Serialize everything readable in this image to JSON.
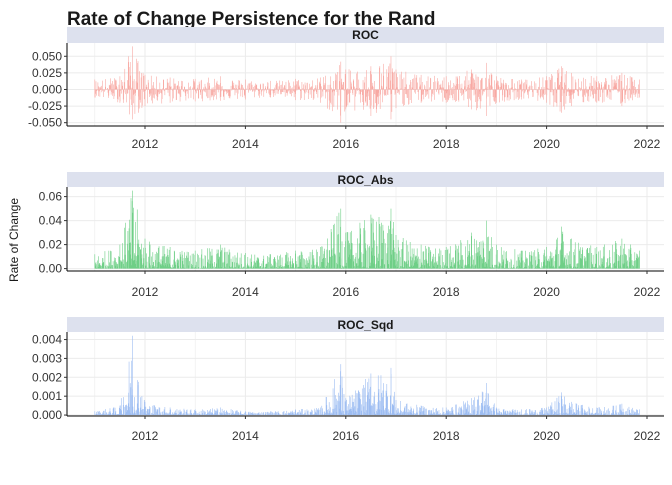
{
  "chart_data": {
    "type": "line",
    "title": "Rate of Change Persistence for the Rand",
    "ylabel": "Rate of Change",
    "xlabel": "",
    "x_range": [
      2011.0,
      2021.85
    ],
    "x_ticks": [
      "2012",
      "2014",
      "2016",
      "2018",
      "2020",
      "2022"
    ],
    "grid": true,
    "legend": "none",
    "panels": [
      {
        "strip": "ROC",
        "color": "#F8A9A3",
        "baseline": 0.0,
        "ylim": [
          -0.055,
          0.07
        ],
        "y_ticks": [
          "0.050",
          "0.025",
          "0.000",
          "-0.025",
          "-0.050"
        ],
        "series": {
          "x": [
            2011.0,
            2011.5,
            2011.75,
            2012.0,
            2012.5,
            2013.0,
            2013.5,
            2014.0,
            2014.5,
            2015.0,
            2015.5,
            2015.9,
            2016.0,
            2016.5,
            2016.9,
            2017.0,
            2017.5,
            2018.0,
            2018.5,
            2018.8,
            2019.0,
            2019.5,
            2020.0,
            2020.3,
            2020.5,
            2021.0,
            2021.5,
            2021.85
          ],
          "hi": [
            0.015,
            0.02,
            0.065,
            0.022,
            0.018,
            0.016,
            0.02,
            0.015,
            0.013,
            0.016,
            0.018,
            0.042,
            0.03,
            0.035,
            0.05,
            0.03,
            0.022,
            0.02,
            0.03,
            0.04,
            0.02,
            0.015,
            0.02,
            0.035,
            0.025,
            0.02,
            0.025,
            0.015
          ],
          "lo": [
            -0.012,
            -0.02,
            -0.045,
            -0.025,
            -0.02,
            -0.018,
            -0.017,
            -0.015,
            -0.012,
            -0.016,
            -0.02,
            -0.05,
            -0.03,
            -0.04,
            -0.045,
            -0.028,
            -0.02,
            -0.02,
            -0.03,
            -0.04,
            -0.02,
            -0.015,
            -0.02,
            -0.035,
            -0.025,
            -0.02,
            -0.025,
            -0.012
          ]
        }
      },
      {
        "strip": "ROC_Abs",
        "color": "#6FCF87",
        "baseline": 0.0,
        "ylim": [
          -0.002,
          0.068
        ],
        "y_ticks": [
          "0.06",
          "0.04",
          "0.02",
          "0.00"
        ],
        "series": {
          "x": [
            2011.0,
            2011.5,
            2011.75,
            2012.0,
            2012.5,
            2013.0,
            2013.5,
            2014.0,
            2014.5,
            2015.0,
            2015.5,
            2015.9,
            2016.0,
            2016.5,
            2016.9,
            2017.0,
            2017.5,
            2018.0,
            2018.5,
            2018.8,
            2019.0,
            2019.5,
            2020.0,
            2020.3,
            2020.5,
            2021.0,
            2021.5,
            2021.85
          ],
          "hi": [
            0.012,
            0.02,
            0.065,
            0.025,
            0.018,
            0.015,
            0.02,
            0.013,
            0.012,
            0.015,
            0.018,
            0.05,
            0.03,
            0.045,
            0.05,
            0.028,
            0.02,
            0.018,
            0.03,
            0.04,
            0.02,
            0.015,
            0.018,
            0.035,
            0.025,
            0.018,
            0.025,
            0.015
          ],
          "lo": [
            0.0,
            0.0,
            0.0,
            0.0,
            0.0,
            0.0,
            0.0,
            0.0,
            0.0,
            0.0,
            0.0,
            0.0,
            0.0,
            0.0,
            0.0,
            0.0,
            0.0,
            0.0,
            0.0,
            0.0,
            0.0,
            0.0,
            0.0,
            0.0,
            0.0,
            0.0,
            0.0,
            0.0
          ]
        }
      },
      {
        "strip": "ROC_Sqd",
        "color": "#9DBDF2",
        "baseline": 0.0,
        "ylim": [
          -5e-05,
          0.0044
        ],
        "y_ticks": [
          "0.004",
          "0.003",
          "0.002",
          "0.001",
          "0.000"
        ],
        "series": {
          "x": [
            2011.0,
            2011.5,
            2011.75,
            2012.0,
            2012.5,
            2013.0,
            2013.5,
            2014.0,
            2014.5,
            2015.0,
            2015.5,
            2015.9,
            2016.0,
            2016.5,
            2016.9,
            2017.0,
            2017.5,
            2018.0,
            2018.5,
            2018.8,
            2019.0,
            2019.5,
            2020.0,
            2020.3,
            2020.5,
            2021.0,
            2021.5,
            2021.85
          ],
          "hi": [
            0.0002,
            0.0005,
            0.0042,
            0.0007,
            0.0004,
            0.0003,
            0.0004,
            0.0002,
            0.0002,
            0.0003,
            0.0004,
            0.0027,
            0.0009,
            0.0022,
            0.0025,
            0.0008,
            0.0005,
            0.0004,
            0.0009,
            0.0017,
            0.0004,
            0.0003,
            0.0004,
            0.0012,
            0.0007,
            0.0004,
            0.0006,
            0.0003
          ],
          "lo": [
            0.0,
            0.0,
            0.0,
            0.0,
            0.0,
            0.0,
            0.0,
            0.0,
            0.0,
            0.0,
            0.0,
            0.0,
            0.0,
            0.0,
            0.0,
            0.0,
            0.0,
            0.0,
            0.0,
            0.0,
            0.0,
            0.0,
            0.0,
            0.0,
            0.0,
            0.0,
            0.0,
            0.0
          ]
        }
      }
    ]
  },
  "colors": {
    "strip_background": "#DDE1EE",
    "grid": "#EBEBEB",
    "axis": "#000000"
  }
}
